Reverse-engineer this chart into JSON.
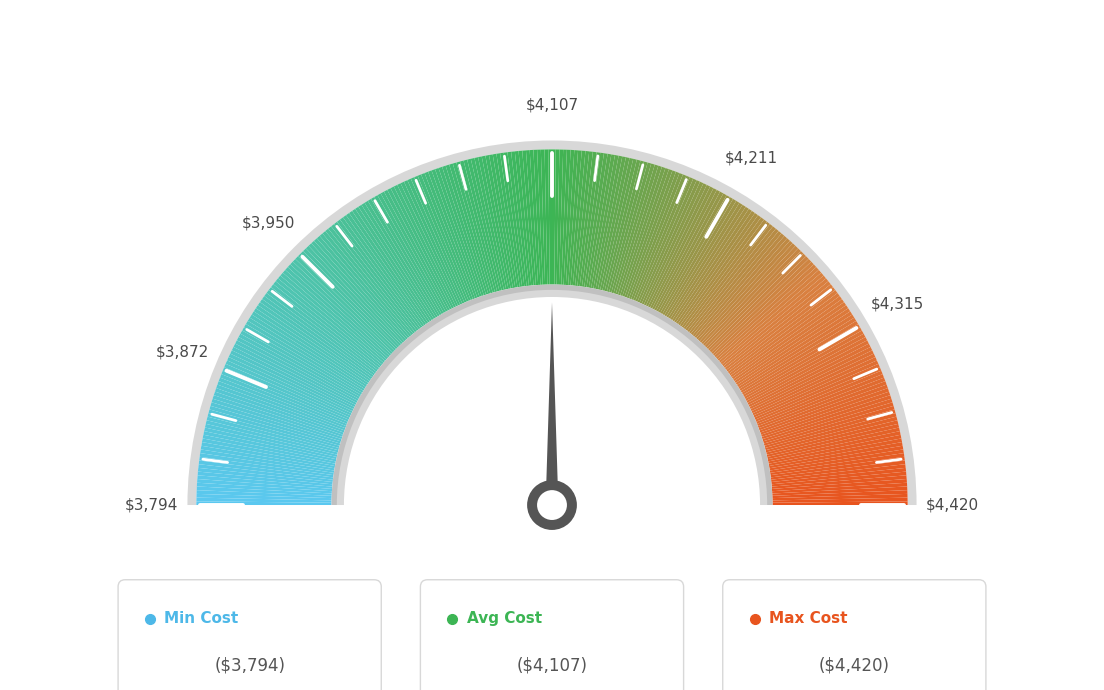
{
  "min_val": 3794,
  "avg_val": 4107,
  "max_val": 4420,
  "tick_labels": [
    "$3,794",
    "$3,872",
    "$3,950",
    "$4,107",
    "$4,211",
    "$4,315",
    "$4,420"
  ],
  "tick_values": [
    3794,
    3872,
    3950,
    4107,
    4211,
    4315,
    4420
  ],
  "minor_tick_values": [
    3820,
    3846,
    3898,
    3924,
    3976,
    4002,
    4028,
    4054,
    4080,
    4133,
    4159,
    4185,
    4237,
    4263,
    4289,
    4341,
    4367,
    4394
  ],
  "legend": [
    {
      "label": "Min Cost",
      "value": "($3,794)",
      "color": "#4db8e8"
    },
    {
      "label": "Avg Cost",
      "value": "($4,107)",
      "color": "#3cb554"
    },
    {
      "label": "Max Cost",
      "value": "($4,420)",
      "color": "#e8541e"
    }
  ],
  "background_color": "#ffffff",
  "color_stops": [
    [
      180,
      "#5bc8f0"
    ],
    [
      140,
      "#4fc4b0"
    ],
    [
      90,
      "#3cb554"
    ],
    [
      40,
      "#d98040"
    ],
    [
      0,
      "#e8541e"
    ]
  ],
  "needle_color": "#555555",
  "needle_base_color": "#555555",
  "outer_border_color": "#d0d0d0",
  "inner_border_color": "#c8c8c8"
}
